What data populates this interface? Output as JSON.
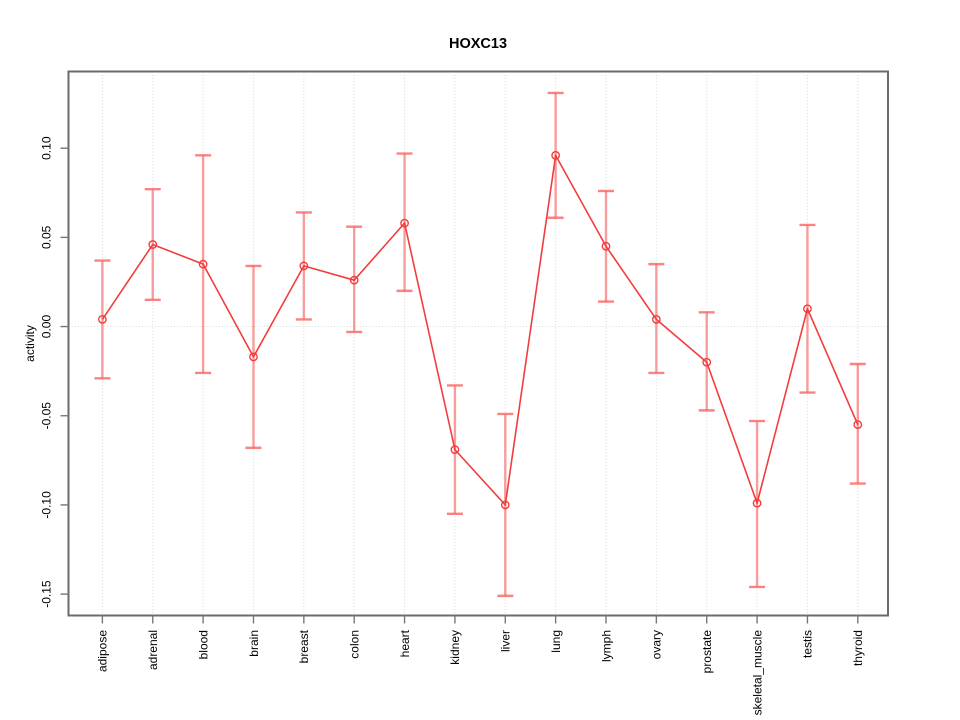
{
  "chart_data": {
    "type": "line",
    "title": "HOXC13",
    "xlabel": "",
    "ylabel": "activity",
    "categories": [
      "adipose",
      "adrenal",
      "blood",
      "brain",
      "breast",
      "colon",
      "heart",
      "kidney",
      "liver",
      "lung",
      "lymph",
      "ovary",
      "prostate",
      "skeletal_muscle",
      "testis",
      "thyroid"
    ],
    "series": [
      {
        "name": "activity",
        "values": [
          0.004,
          0.046,
          0.035,
          -0.017,
          0.034,
          0.026,
          0.058,
          -0.069,
          -0.1,
          0.096,
          0.045,
          0.004,
          -0.02,
          -0.099,
          0.01,
          -0.055
        ],
        "error_low": [
          -0.029,
          0.015,
          -0.026,
          -0.068,
          0.004,
          -0.003,
          0.02,
          -0.105,
          -0.151,
          0.061,
          0.014,
          -0.026,
          -0.047,
          -0.146,
          -0.037,
          -0.088
        ],
        "error_high": [
          0.037,
          0.077,
          0.096,
          0.034,
          0.064,
          0.056,
          0.097,
          -0.033,
          -0.049,
          0.131,
          0.076,
          0.035,
          0.008,
          -0.053,
          0.057,
          -0.021
        ]
      }
    ],
    "ylim": [
      -0.162,
      0.143
    ],
    "yticks": [
      0.1,
      0.05,
      0.0,
      -0.05,
      -0.1,
      -0.15
    ],
    "ytick_labels": [
      "0.10",
      "0.05",
      "0.00",
      "-0.05",
      "-0.10",
      "-0.15"
    ],
    "grid": {
      "vertical_per_category": true,
      "horizontal_at_zero": true,
      "style": "dotted"
    },
    "legend": "none",
    "marker": "open-circle",
    "colors": {
      "line": "#F23D3D",
      "marker": "#F23D3D",
      "error_bar": "#F96464",
      "grid": "#D8D8D8",
      "box": "#6B6B6B",
      "tick": "#777777",
      "text": "#000000",
      "background": "#FFFFFF"
    },
    "error_bar_opacity": 0.62
  }
}
